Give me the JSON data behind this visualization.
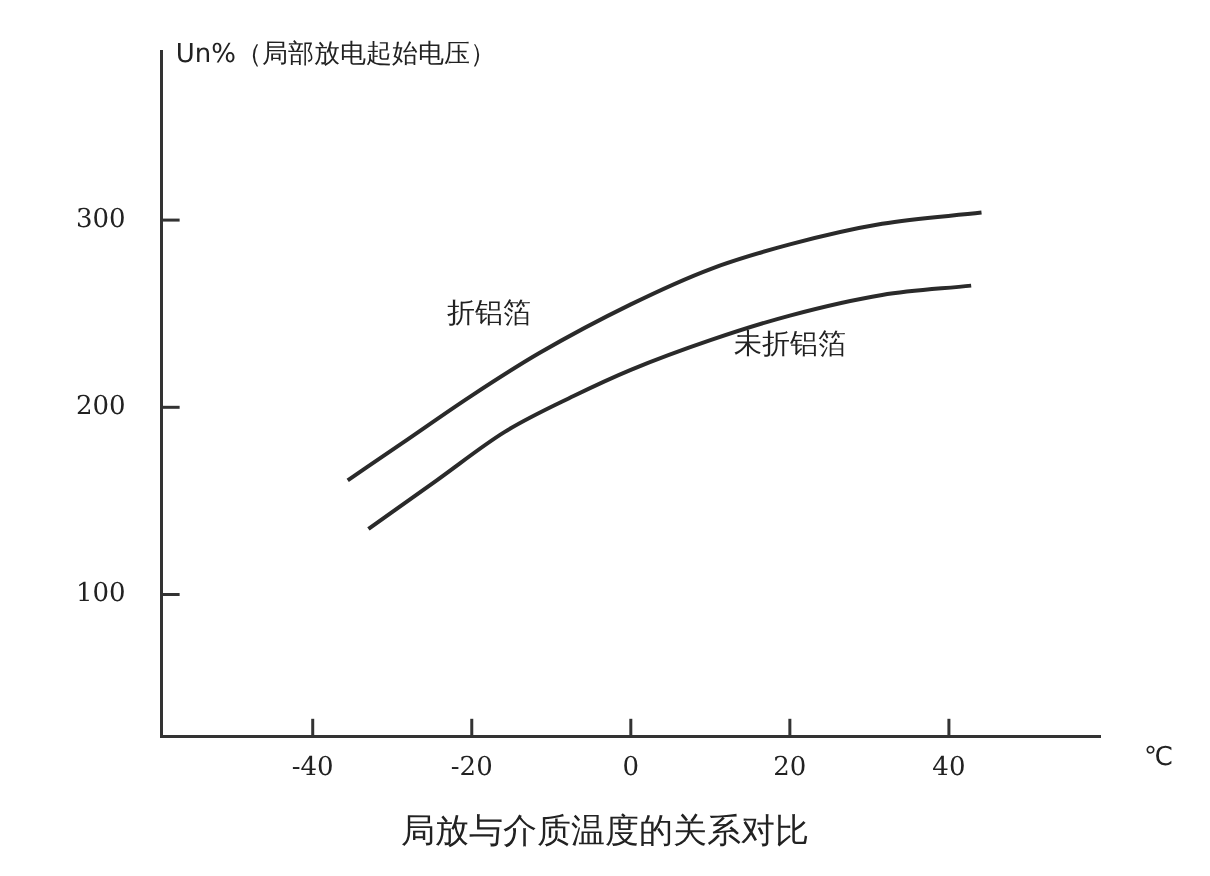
{
  "chart_data": {
    "type": "line",
    "title": "局放与介质温度的关系对比",
    "xlabel": "℃",
    "ylabel": "Un%（局部放电起始电压）",
    "xlim": [
      -59,
      59
    ],
    "xticks": [
      -40,
      -20,
      0,
      20,
      40
    ],
    "ylim": [
      24,
      390
    ],
    "yticks": [
      100,
      200,
      300
    ],
    "grid": false,
    "legend": false,
    "marker": "none",
    "line_style": "solid",
    "series": [
      {
        "name": "折铝箔",
        "color": "#2a2a2a",
        "x": [
          -35.6,
          -28.7,
          -20.1,
          -11.5,
          0,
          10.1,
          20,
          31.6,
          44.1
        ],
        "values": [
          161,
          181,
          206,
          229,
          255,
          274,
          287,
          298,
          304
        ]
      },
      {
        "name": "未折铝箔",
        "color": "#2a2a2a",
        "x": [
          -33,
          -24.4,
          -15.8,
          -7.2,
          0,
          10.1,
          20,
          31.6,
          42.8
        ],
        "values": [
          135,
          161,
          187,
          206,
          220,
          236,
          249,
          260,
          265
        ]
      }
    ]
  }
}
